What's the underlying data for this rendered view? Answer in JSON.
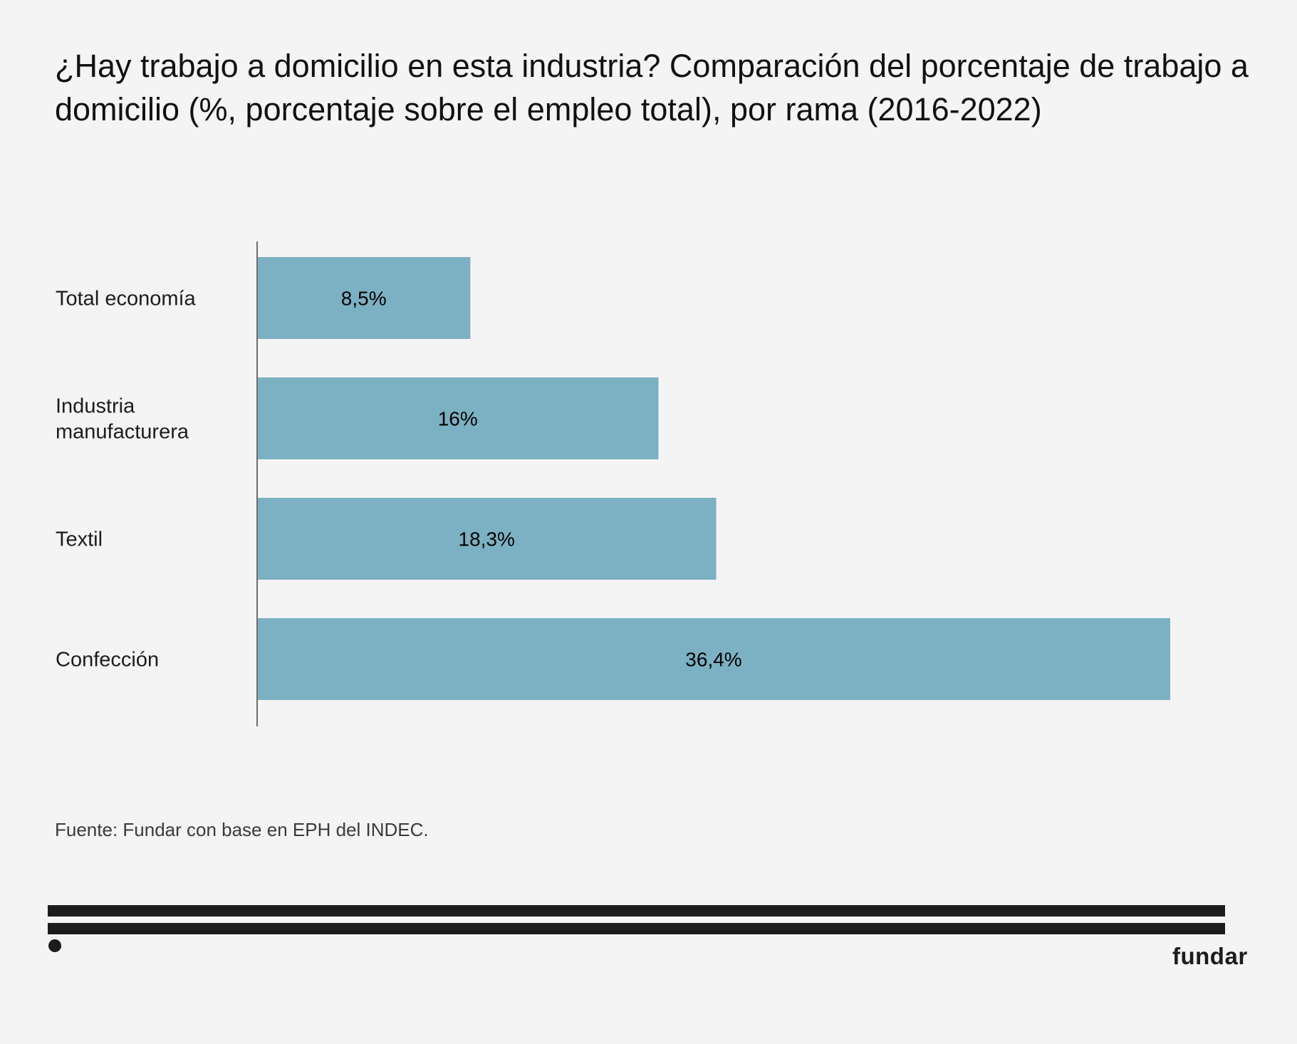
{
  "header": {
    "title": "¿Hay trabajo a domicilio en esta industria? Comparación del porcentaje de trabajo a domicilio (%, porcentaje sobre el empleo total), por rama (2016-2022)"
  },
  "chart_data": {
    "type": "bar",
    "orientation": "horizontal",
    "title": "¿Hay trabajo a domicilio en esta industria? Comparación del porcentaje de trabajo a domicilio (%, porcentaje sobre el empleo total), por rama (2016-2022)",
    "xlabel": "",
    "ylabel": "",
    "categories": [
      [
        "Total economía"
      ],
      [
        "Industria",
        "manufacturera"
      ],
      [
        "Textil"
      ],
      [
        "Confección"
      ]
    ],
    "values": [
      8.5,
      16,
      18.3,
      36.4
    ],
    "data_labels": [
      "8,5%",
      "16%",
      "18,3%",
      "36,4%"
    ],
    "xlim": [
      0,
      36.4
    ],
    "grid": false,
    "legend": "none",
    "bar_color": "#7bb1c2",
    "axis_color": "#6e6e6e"
  },
  "footer": {
    "source": "Fuente: Fundar con base en EPH del INDEC.",
    "brand": "fundar"
  }
}
